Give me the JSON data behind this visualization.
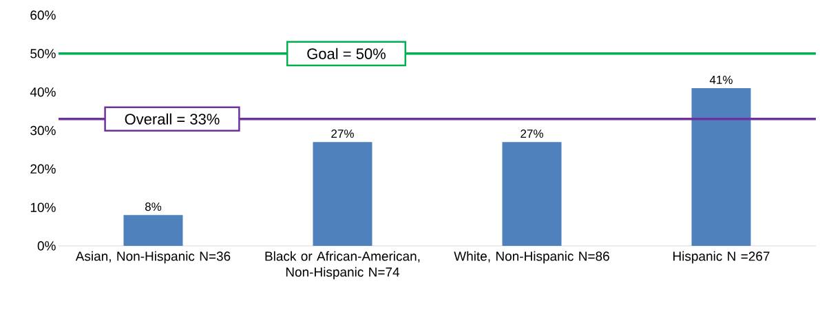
{
  "chart_data": {
    "type": "bar",
    "categories": [
      "Asian, Non-Hispanic N=36",
      "Black or African-American, Non-Hispanic N=74",
      "White, Non-Hispanic N=86",
      "Hispanic N =267"
    ],
    "values": [
      8,
      27,
      27,
      41
    ],
    "value_labels": [
      "8%",
      "27%",
      "27%",
      "41%"
    ],
    "color": "#4f81bd",
    "ylim": [
      0,
      60
    ],
    "yticks": [
      {
        "value": 0,
        "label": "0%"
      },
      {
        "value": 10,
        "label": "10%"
      },
      {
        "value": 20,
        "label": "20%"
      },
      {
        "value": 30,
        "label": "30%"
      },
      {
        "value": 40,
        "label": "40%"
      },
      {
        "value": 50,
        "label": "50%"
      },
      {
        "value": 60,
        "label": "60%"
      }
    ],
    "ref_lines": [
      {
        "axis": "y",
        "value": 50,
        "label": "Goal = 50%",
        "color": "#00b050"
      },
      {
        "axis": "y",
        "value": 33,
        "label": "Overall = 33%",
        "color": "#7030a0"
      }
    ],
    "grid": false
  }
}
